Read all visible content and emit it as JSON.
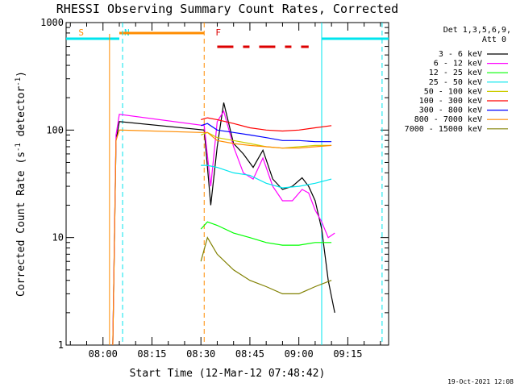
{
  "chart_data": {
    "type": "line",
    "title": "RHESSI Observing Summary Count Rates, Corrected",
    "xlabel": "Start Time (12-Mar-12 07:48:42)",
    "ylabel": "Corrected Count Rate (s⁻¹ detector⁻¹)",
    "ylabel_parts": {
      "main": "Corrected Count Rate (s",
      "exp1": "-1",
      "mid": " detector",
      "exp2": "-1",
      "end": ")"
    },
    "yscale": "log",
    "ylim": [
      1,
      1000
    ],
    "y_ticks": [
      {
        "v": 1,
        "label": "1"
      },
      {
        "v": 10,
        "label": "10"
      },
      {
        "v": 100,
        "label": "100"
      },
      {
        "v": 1000,
        "label": "1000"
      }
    ],
    "xlim": [
      "07:48:42",
      "09:27:30"
    ],
    "x_ticks": [
      "08:00",
      "08:15",
      "08:30",
      "08:45",
      "09:00",
      "09:15"
    ],
    "footer_date": "19-Oct-2021 12:08",
    "legend": {
      "header_lines": [
        "Det 1,3,5,6,9,",
        "Att 0"
      ],
      "placement": "right"
    },
    "flags": [
      {
        "label": "S",
        "color": "#ff8c00",
        "x_start": "07:52:00"
      },
      {
        "label": "N",
        "color": "#00e5ee",
        "x_start": "08:06:00"
      },
      {
        "label": "F",
        "color": "#dd0000",
        "x_start": "08:34:00"
      }
    ],
    "series": [
      {
        "name": "3 - 6 keV",
        "color": "#000000",
        "x": [
          "08:03",
          "08:04",
          "08:05",
          "08:31",
          "08:33",
          "08:35",
          "08:37",
          "08:40",
          "08:43",
          "08:46",
          "08:49",
          "08:52",
          "08:55",
          "08:58",
          "09:01",
          "09:03",
          "09:05",
          "09:07",
          "09:09",
          "09:11"
        ],
        "values": [
          1,
          80,
          120,
          100,
          20,
          70,
          180,
          75,
          60,
          45,
          65,
          35,
          28,
          30,
          36,
          30,
          22,
          12,
          4,
          2
        ]
      },
      {
        "name": "6 - 12 keV",
        "color": "#ff00ff",
        "x": [
          "08:03",
          "08:04",
          "08:05",
          "08:31",
          "08:33",
          "08:35",
          "08:37",
          "08:40",
          "08:43",
          "08:46",
          "08:49",
          "08:52",
          "08:55",
          "08:58",
          "09:01",
          "09:03",
          "09:05",
          "09:07",
          "09:09",
          "09:11"
        ],
        "values": [
          1,
          90,
          140,
          110,
          30,
          120,
          150,
          70,
          40,
          35,
          55,
          30,
          22,
          22,
          28,
          26,
          18,
          14,
          10,
          11
        ]
      },
      {
        "name": "12 - 25 keV",
        "color": "#00ff00",
        "x": [
          "08:30",
          "08:32",
          "08:35",
          "08:40",
          "08:45",
          "08:50",
          "08:55",
          "09:00",
          "09:05",
          "09:10"
        ],
        "values": [
          12,
          14,
          13,
          11,
          10,
          9,
          8.5,
          8.5,
          9,
          9
        ]
      },
      {
        "name": "25 - 50 keV",
        "color": "#00e5ee",
        "x": [
          "08:30",
          "08:32",
          "08:35",
          "08:40",
          "08:45",
          "08:50",
          "08:55",
          "09:00",
          "09:05",
          "09:10"
        ],
        "values": [
          47,
          47,
          45,
          40,
          38,
          32,
          29,
          30,
          32,
          35
        ]
      },
      {
        "name": "50 - 100 keV",
        "color": "#cccc00",
        "x": [
          "08:30",
          "08:32",
          "08:35",
          "08:40",
          "08:45",
          "08:50",
          "08:55",
          "09:00",
          "09:05",
          "09:10"
        ],
        "values": [
          90,
          95,
          85,
          80,
          75,
          70,
          68,
          70,
          72,
          72
        ]
      },
      {
        "name": "100 - 300 keV",
        "color": "#ff0000",
        "x": [
          "08:30",
          "08:32",
          "08:35",
          "08:40",
          "08:45",
          "08:50",
          "08:55",
          "09:00",
          "09:05",
          "09:10"
        ],
        "values": [
          125,
          130,
          125,
          115,
          105,
          100,
          98,
          100,
          105,
          110
        ]
      },
      {
        "name": "300 - 800 keV",
        "color": "#0000ff",
        "x": [
          "08:30",
          "08:32",
          "08:35",
          "08:40",
          "08:45",
          "08:50",
          "08:55",
          "09:00",
          "09:05",
          "09:10"
        ],
        "values": [
          110,
          115,
          100,
          95,
          90,
          85,
          80,
          80,
          78,
          78
        ]
      },
      {
        "name": "800 - 7000 keV",
        "color": "#ff8c00",
        "x": [
          "08:03",
          "08:04",
          "08:05",
          "08:30",
          "08:32",
          "08:35",
          "08:40",
          "08:45",
          "08:50",
          "08:55",
          "09:00",
          "09:05",
          "09:10"
        ],
        "values": [
          1,
          80,
          100,
          95,
          95,
          80,
          75,
          72,
          70,
          68,
          68,
          70,
          72
        ]
      },
      {
        "name": "7000 - 15000 keV",
        "color": "#808000",
        "x": [
          "08:30",
          "08:32",
          "08:35",
          "08:40",
          "08:45",
          "08:50",
          "08:55",
          "09:00",
          "09:05",
          "09:10"
        ],
        "values": [
          6,
          10,
          7,
          5,
          4,
          3.5,
          3,
          3,
          3.5,
          4
        ]
      }
    ]
  }
}
